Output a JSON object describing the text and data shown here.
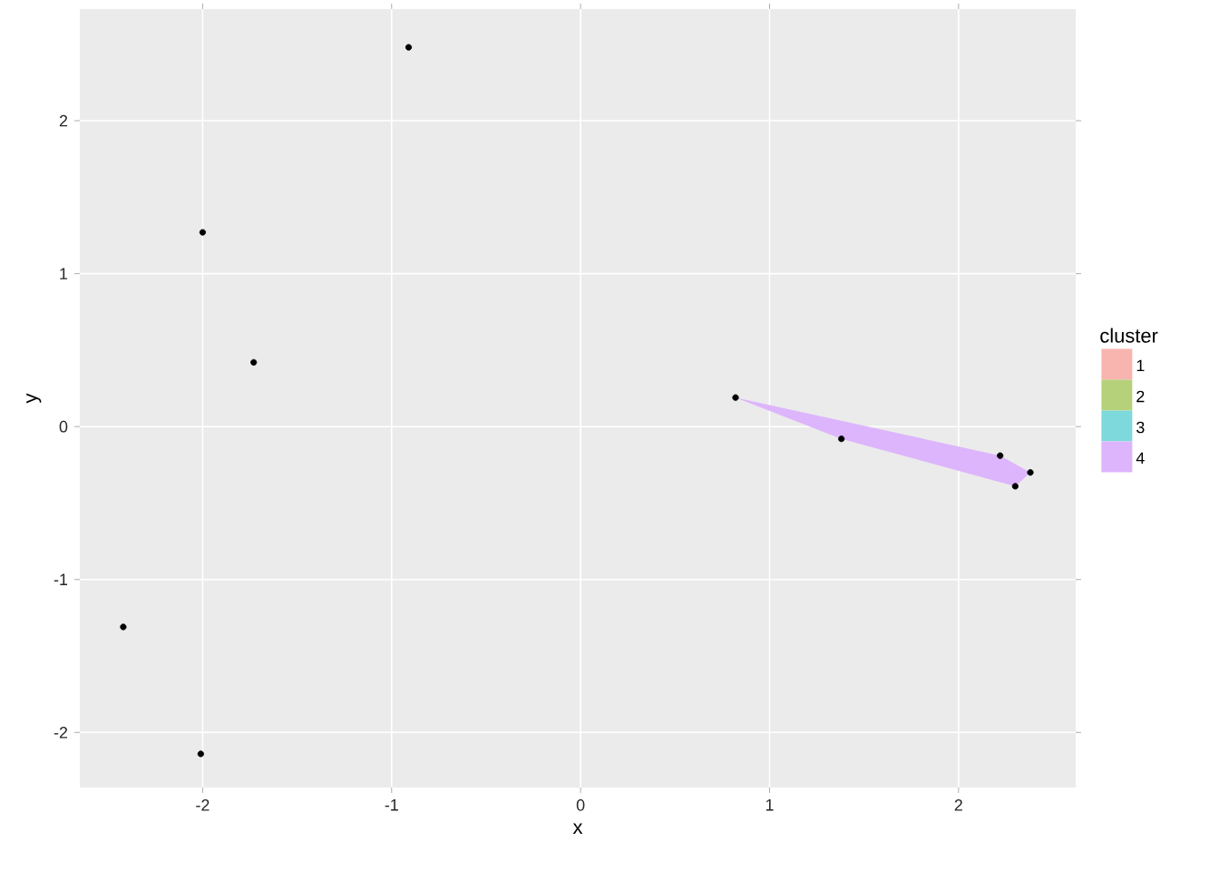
{
  "chart_data": {
    "type": "scatter",
    "xlabel": "x",
    "ylabel": "y",
    "legend_title": "cluster",
    "xlim": [
      -2.65,
      2.62
    ],
    "ylim": [
      -2.36,
      2.73
    ],
    "xticks": [
      -2,
      -1,
      0,
      1,
      2
    ],
    "yticks": [
      -2,
      -1,
      0,
      1,
      2
    ],
    "grid": true,
    "legend": "right",
    "series": [
      {
        "marker": "circle",
        "color": "#000000",
        "x": [
          -0.91,
          -2.0,
          -1.73,
          -2.42,
          -2.01,
          0.82,
          1.38,
          2.22,
          2.3,
          2.38
        ],
        "values": [
          2.48,
          1.27,
          0.42,
          -1.31,
          -2.14,
          0.19,
          -0.08,
          -0.19,
          -0.39,
          -0.3
        ]
      },
      {
        "type": "area",
        "name": "1",
        "color": "#f8b4af"
      },
      {
        "type": "area",
        "name": "2",
        "color": "#b5d27a"
      },
      {
        "type": "area",
        "name": "3",
        "color": "#7dd9db"
      },
      {
        "type": "area",
        "name": "4",
        "marker": "none",
        "color": "#ddb5fc",
        "x": [
          0.82,
          2.22,
          2.38,
          2.3,
          1.38
        ],
        "values": [
          0.19,
          -0.19,
          -0.3,
          -0.39,
          -0.08
        ]
      }
    ]
  }
}
